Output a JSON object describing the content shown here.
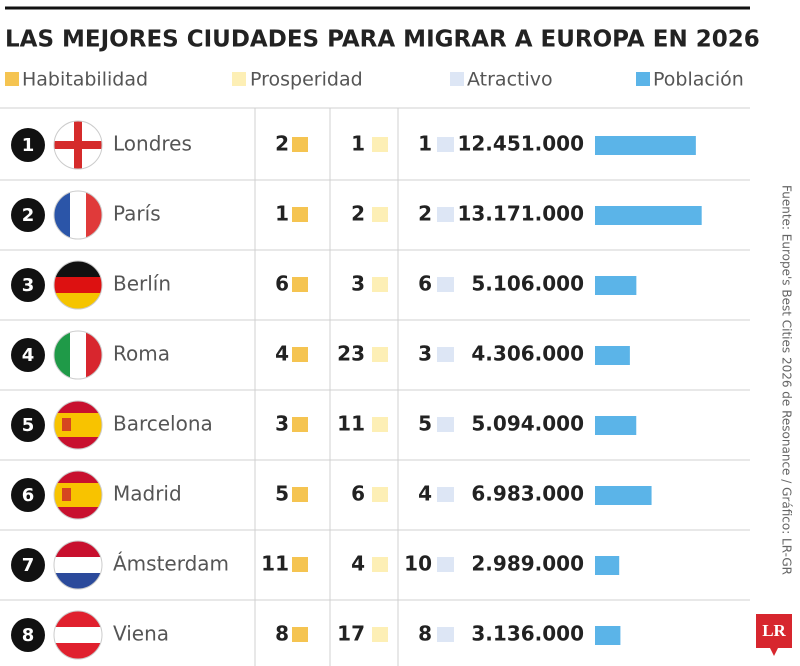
{
  "header": {
    "title": "LAS MEJORES CIUDADES PARA MIGRAR A EUROPA EN 2026"
  },
  "legend": [
    "Habitabilidad",
    "Prosperidad",
    "Atractivo",
    "Población"
  ],
  "table": {
    "rows": [
      {
        "rank": 1,
        "city": "Londres",
        "habitabilidad": 2,
        "prosperidad": 1,
        "atractivo": 1,
        "poblacion": {
          "value": 12451000,
          "label": "12.451.000"
        }
      },
      {
        "rank": 2,
        "city": "París",
        "habitabilidad": 1,
        "prosperidad": 2,
        "atractivo": 2,
        "poblacion": {
          "value": 13171000,
          "label": "13.171.000"
        }
      },
      {
        "rank": 3,
        "city": "Berlín",
        "habitabilidad": 6,
        "prosperidad": 3,
        "atractivo": 6,
        "poblacion": {
          "value": 5106000,
          "label": "5.106.000"
        }
      },
      {
        "rank": 4,
        "city": "Roma",
        "habitabilidad": 4,
        "prosperidad": 23,
        "atractivo": 3,
        "poblacion": {
          "value": 4306000,
          "label": "4.306.000"
        }
      },
      {
        "rank": 5,
        "city": "Barcelona",
        "habitabilidad": 3,
        "prosperidad": 11,
        "atractivo": 5,
        "poblacion": {
          "value": 5094000,
          "label": "5.094.000"
        }
      },
      {
        "rank": 6,
        "city": "Madrid",
        "habitabilidad": 5,
        "prosperidad": 6,
        "atractivo": 4,
        "poblacion": {
          "value": 6983000,
          "label": "6.983.000"
        }
      },
      {
        "rank": 7,
        "city": "Ámsterdam",
        "habitabilidad": 11,
        "prosperidad": 4,
        "atractivo": 10,
        "poblacion": {
          "value": 2989000,
          "label": "2.989.000"
        }
      },
      {
        "rank": 8,
        "city": "Viena",
        "habitabilidad": 8,
        "prosperidad": 17,
        "atractivo": 8,
        "poblacion": {
          "value": 3136000,
          "label": "3.136.000"
        }
      }
    ]
  },
  "source": "Fuente: Europe's Best Cities 2026 de Resonance / Gráfico: LR-GR",
  "logo": "LR"
}
